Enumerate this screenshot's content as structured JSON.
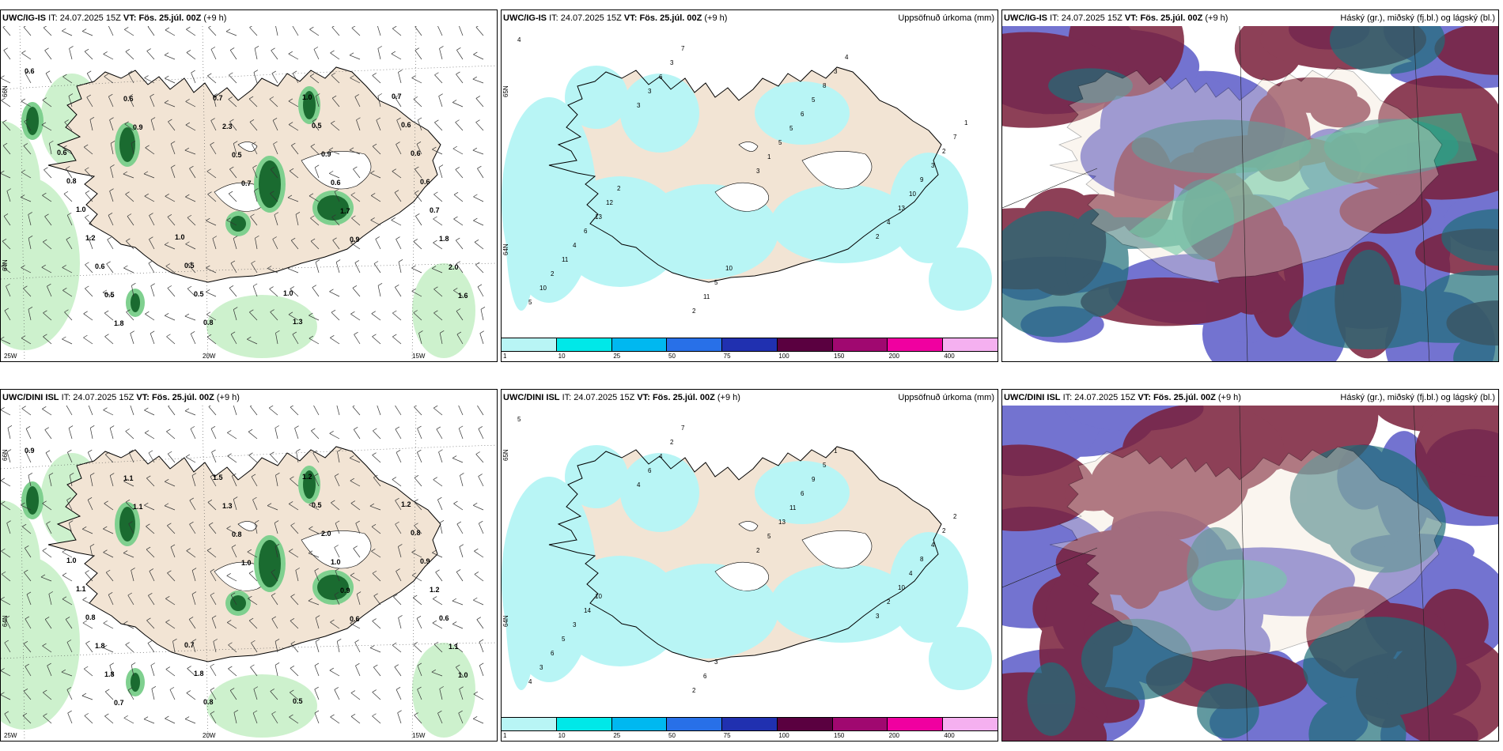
{
  "rows": [
    {
      "model": "UWC/IG-IS",
      "panels": [
        {
          "it_label": "IT:",
          "it_value": "24.07.2025 15Z",
          "vt_label": "VT:",
          "vt_value": "Fös. 25.júl. 00Z",
          "lead": "(+9 h)",
          "right_title": "",
          "lat1": "66N",
          "lat2": "64N",
          "lon1": "25W",
          "lon2": "20W",
          "lon3": "15W"
        },
        {
          "it_label": "IT:",
          "it_value": "24.07.2025 15Z",
          "vt_label": "VT:",
          "vt_value": "Fös. 25.júl. 00Z",
          "lead": "(+9 h)",
          "right_title": "Uppsöfnuð úrkoma (mm)",
          "lat1": "65N",
          "lat2": "64N"
        },
        {
          "it_label": "IT:",
          "it_value": "24.07.2025 15Z",
          "vt_label": "VT:",
          "vt_value": "Fös. 25.júl. 00Z",
          "lead": "(+9 h)",
          "right_title": "Háský (gr.), miðský (fj.bl.) og lágský (bl.)"
        }
      ]
    },
    {
      "model": "UWC/DINI ISL",
      "panels": [
        {
          "it_label": "IT:",
          "it_value": "24.07.2025 15Z",
          "vt_label": "VT:",
          "vt_value": "Fös. 25.júl. 00Z",
          "lead": "(+9 h)",
          "right_title": "",
          "lat1": "66N",
          "lat2": "64N",
          "lon1": "25W",
          "lon2": "20W",
          "lon3": "15W"
        },
        {
          "it_label": "IT:",
          "it_value": "24.07.2025 15Z",
          "vt_label": "VT:",
          "vt_value": "Fös. 25.júl. 00Z",
          "lead": "(+9 h)",
          "right_title": "Uppsöfnuð úrkoma (mm)",
          "lat1": "65N",
          "lat2": "64N"
        },
        {
          "it_label": "IT:",
          "it_value": "24.07.2025 15Z",
          "vt_label": "VT:",
          "vt_value": "Fös. 25.júl. 00Z",
          "lead": "(+9 h)",
          "right_title": "Háský (gr.), miðský (fj.bl.) og lágský (bl.)"
        }
      ]
    }
  ],
  "precip_legend": {
    "ticks": [
      "1",
      "10",
      "25",
      "50",
      "75",
      "100",
      "150",
      "200",
      "400"
    ],
    "colors": [
      "#b8f5f5",
      "#00e8e8",
      "#00b8f0",
      "#2870e8",
      "#2030b0",
      "#5a0040",
      "#a00870",
      "#f000a0",
      "#f5b0f0"
    ]
  },
  "colors": {
    "land": "#f2e4d4",
    "wind_green_light": "#c8f0c8",
    "wind_green_dark": "#1a6b30",
    "precip_cyan": "#b8f5f5",
    "cloud_high": "#1f6e78",
    "cloud_mid": "#5b5bc8",
    "cloud_low": "#7a1f3a",
    "cloud_green": "#30c090"
  },
  "labels": {
    "r0p0": [
      "0.6",
      "0.9",
      "0.7",
      "0.9",
      "1.6",
      "0.6",
      "0.5",
      "1.7",
      "2.0",
      "1.8",
      "2.3",
      "0.6",
      "1.8",
      "0.5",
      "0.7",
      "0.9",
      "0.7",
      "0.6",
      "0.8",
      "0.5",
      "0.6",
      "1.2",
      "0.5",
      "1.0",
      "0.6",
      "1.0",
      "0.5",
      "1.3",
      "0.6",
      "0.8",
      "1.0",
      "1.0",
      "0.7",
      "0.6"
    ],
    "r0p1": [
      "4",
      "3",
      "3",
      "2",
      "5",
      "3",
      "1",
      "4",
      "10",
      "6",
      "5",
      "13",
      "2",
      "3",
      "5",
      "10",
      "11",
      "7",
      "6",
      "9",
      "4",
      "2",
      "5",
      "3",
      "6",
      "11",
      "8",
      "2",
      "13",
      "5",
      "3",
      "7",
      "12",
      "10",
      "4",
      "1",
      "2"
    ],
    "r1p0": [
      "0.9",
      "1.1",
      "1.0",
      "0.6",
      "1.0",
      "1.1",
      "0.8",
      "0.9",
      "1.1",
      "0.7",
      "1.3",
      "1.0",
      "0.6",
      "1.8",
      "1.5",
      "2.0",
      "1.2",
      "1.8",
      "0.8",
      "0.5",
      "0.9",
      "0.8",
      "1.8",
      "1.2",
      "0.8",
      "1.1",
      "0.7",
      "0.5",
      "1.2",
      "1.0"
    ],
    "r1p1": [
      "5",
      "4",
      "2",
      "3",
      "4",
      "6",
      "5",
      "2",
      "3",
      "4",
      "13",
      "10",
      "6",
      "2",
      "11",
      "4",
      "5",
      "7",
      "6",
      "8",
      "3",
      "2",
      "9",
      "4",
      "14",
      "6",
      "5",
      "2",
      "10",
      "3",
      "1",
      "2"
    ]
  }
}
